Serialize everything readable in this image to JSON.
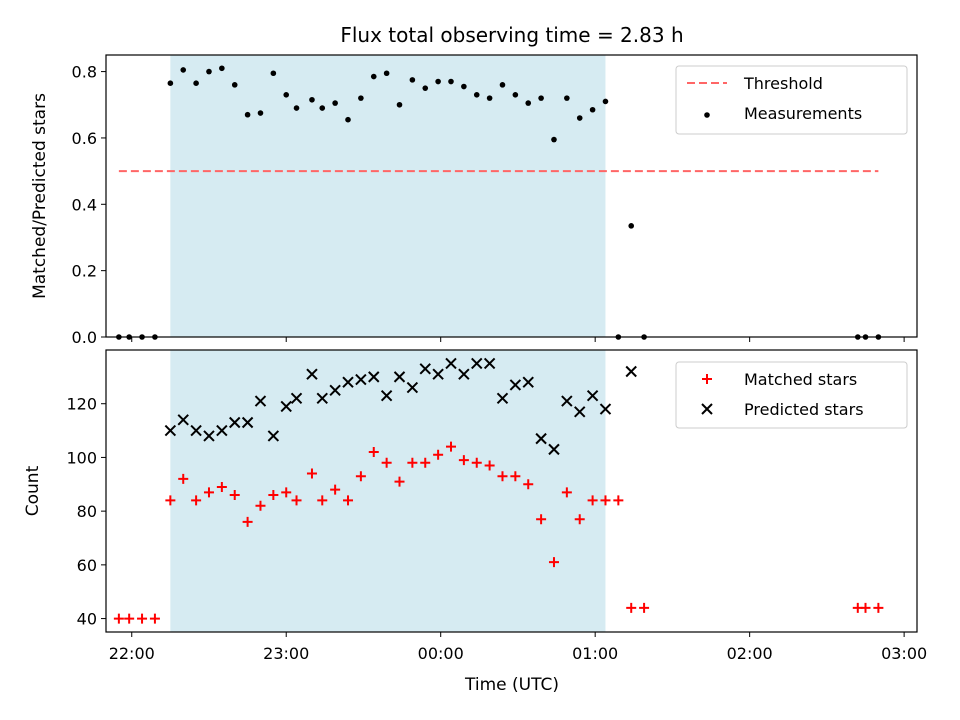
{
  "chart_data": {
    "title": "Flux total observing time = 2.83 h",
    "xlabel": "Time (UTC)",
    "xlim": [
      "21:50",
      "03:05"
    ],
    "xticks": [
      "22:00",
      "23:00",
      "00:00",
      "01:00",
      "02:00",
      "03:00"
    ],
    "shaded_region": {
      "start": "22:15",
      "end": "01:04",
      "color": "#add8e6"
    },
    "panels": [
      {
        "type": "scatter",
        "ylabel": "Matched/Predicted stars",
        "ylim": [
          0,
          0.85
        ],
        "yticks": [
          "0.0",
          "0.2",
          "0.4",
          "0.6",
          "0.8"
        ],
        "legend_position": "top-right",
        "threshold": {
          "name": "Threshold",
          "value": 0.5,
          "x_start": "21:55",
          "x_end": "02:50",
          "color": "#ff6666"
        },
        "series": [
          {
            "name": "Measurements",
            "marker": "dot",
            "color": "#000000",
            "points": [
              [
                "21:55",
                0.0
              ],
              [
                "21:59",
                0.0
              ],
              [
                "22:04",
                0.0
              ],
              [
                "22:09",
                0.0
              ],
              [
                "22:15",
                0.765
              ],
              [
                "22:20",
                0.805
              ],
              [
                "22:25",
                0.765
              ],
              [
                "22:30",
                0.8
              ],
              [
                "22:35",
                0.81
              ],
              [
                "22:40",
                0.76
              ],
              [
                "22:45",
                0.67
              ],
              [
                "22:50",
                0.675
              ],
              [
                "22:55",
                0.795
              ],
              [
                "23:00",
                0.73
              ],
              [
                "23:04",
                0.69
              ],
              [
                "23:10",
                0.715
              ],
              [
                "23:14",
                0.69
              ],
              [
                "23:19",
                0.705
              ],
              [
                "23:24",
                0.655
              ],
              [
                "23:29",
                0.72
              ],
              [
                "23:34",
                0.785
              ],
              [
                "23:39",
                0.795
              ],
              [
                "23:44",
                0.7
              ],
              [
                "23:49",
                0.775
              ],
              [
                "23:54",
                0.75
              ],
              [
                "23:59",
                0.77
              ],
              [
                "00:04",
                0.77
              ],
              [
                "00:09",
                0.755
              ],
              [
                "00:14",
                0.73
              ],
              [
                "00:19",
                0.72
              ],
              [
                "00:24",
                0.76
              ],
              [
                "00:29",
                0.73
              ],
              [
                "00:34",
                0.705
              ],
              [
                "00:39",
                0.72
              ],
              [
                "00:44",
                0.595
              ],
              [
                "00:49",
                0.72
              ],
              [
                "00:54",
                0.66
              ],
              [
                "00:59",
                0.685
              ],
              [
                "01:04",
                0.71
              ],
              [
                "01:09",
                0.0
              ],
              [
                "01:14",
                0.335
              ],
              [
                "01:19",
                0.0
              ],
              [
                "02:42",
                0.0
              ],
              [
                "02:45",
                0.0
              ],
              [
                "02:50",
                0.0
              ]
            ]
          }
        ]
      },
      {
        "type": "scatter",
        "ylabel": "Count",
        "ylim": [
          35,
          140
        ],
        "yticks": [
          "40",
          "60",
          "80",
          "100",
          "120"
        ],
        "legend_position": "top-right",
        "series": [
          {
            "name": "Matched stars",
            "marker": "plus",
            "color": "#ff0000",
            "points": [
              [
                "21:55",
                40
              ],
              [
                "21:59",
                40
              ],
              [
                "22:04",
                40
              ],
              [
                "22:09",
                40
              ],
              [
                "22:15",
                84
              ],
              [
                "22:20",
                92
              ],
              [
                "22:25",
                84
              ],
              [
                "22:30",
                87
              ],
              [
                "22:35",
                89
              ],
              [
                "22:40",
                86
              ],
              [
                "22:45",
                76
              ],
              [
                "22:50",
                82
              ],
              [
                "22:55",
                86
              ],
              [
                "23:00",
                87
              ],
              [
                "23:04",
                84
              ],
              [
                "23:10",
                94
              ],
              [
                "23:14",
                84
              ],
              [
                "23:19",
                88
              ],
              [
                "23:24",
                84
              ],
              [
                "23:29",
                93
              ],
              [
                "23:34",
                102
              ],
              [
                "23:39",
                98
              ],
              [
                "23:44",
                91
              ],
              [
                "23:49",
                98
              ],
              [
                "23:54",
                98
              ],
              [
                "23:59",
                101
              ],
              [
                "00:04",
                104
              ],
              [
                "00:09",
                99
              ],
              [
                "00:14",
                98
              ],
              [
                "00:19",
                97
              ],
              [
                "00:24",
                93
              ],
              [
                "00:29",
                93
              ],
              [
                "00:34",
                90
              ],
              [
                "00:39",
                77
              ],
              [
                "00:44",
                61
              ],
              [
                "00:49",
                87
              ],
              [
                "00:54",
                77
              ],
              [
                "00:59",
                84
              ],
              [
                "01:04",
                84
              ],
              [
                "01:09",
                84
              ],
              [
                "01:14",
                44
              ],
              [
                "01:19",
                44
              ],
              [
                "02:42",
                44
              ],
              [
                "02:45",
                44
              ],
              [
                "02:50",
                44
              ]
            ]
          },
          {
            "name": "Predicted stars",
            "marker": "x",
            "color": "#000000",
            "points": [
              [
                "22:15",
                110
              ],
              [
                "22:20",
                114
              ],
              [
                "22:25",
                110
              ],
              [
                "22:30",
                108
              ],
              [
                "22:35",
                110
              ],
              [
                "22:40",
                113
              ],
              [
                "22:45",
                113
              ],
              [
                "22:50",
                121
              ],
              [
                "22:55",
                108
              ],
              [
                "23:00",
                119
              ],
              [
                "23:04",
                122
              ],
              [
                "23:10",
                131
              ],
              [
                "23:14",
                122
              ],
              [
                "23:19",
                125
              ],
              [
                "23:24",
                128
              ],
              [
                "23:29",
                129
              ],
              [
                "23:34",
                130
              ],
              [
                "23:39",
                123
              ],
              [
                "23:44",
                130
              ],
              [
                "23:49",
                126
              ],
              [
                "23:54",
                133
              ],
              [
                "23:59",
                131
              ],
              [
                "00:04",
                135
              ],
              [
                "00:09",
                131
              ],
              [
                "00:14",
                135
              ],
              [
                "00:19",
                135
              ],
              [
                "00:24",
                122
              ],
              [
                "00:29",
                127
              ],
              [
                "00:34",
                128
              ],
              [
                "00:39",
                107
              ],
              [
                "00:44",
                103
              ],
              [
                "00:49",
                121
              ],
              [
                "00:54",
                117
              ],
              [
                "00:59",
                123
              ],
              [
                "01:04",
                118
              ],
              [
                "01:14",
                132
              ]
            ]
          }
        ]
      }
    ]
  }
}
